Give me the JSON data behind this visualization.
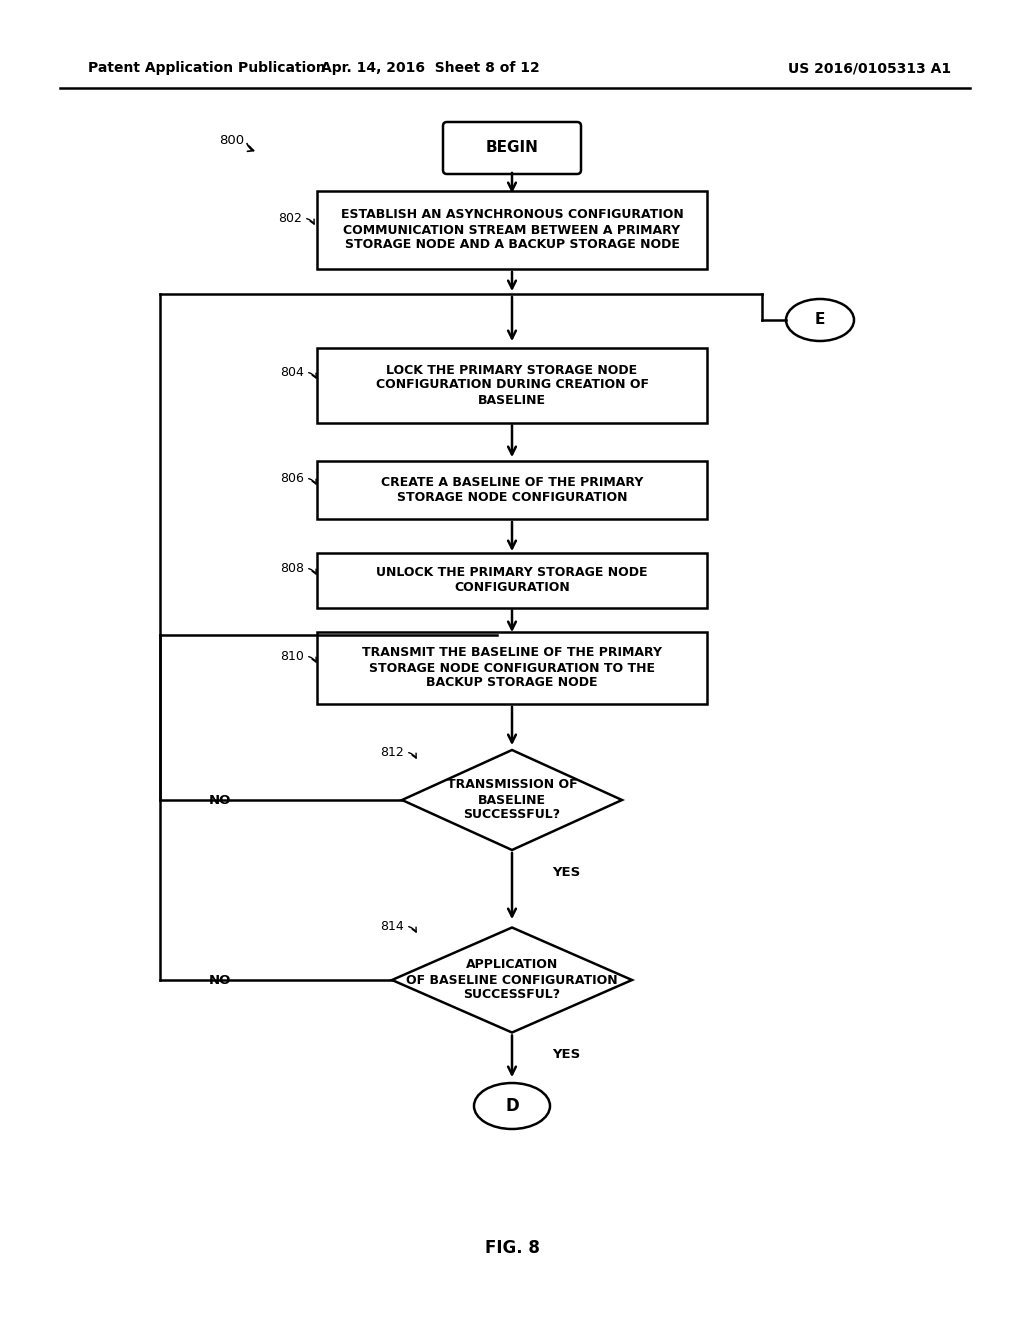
{
  "title": "FIG. 8",
  "header_left": "Patent Application Publication",
  "header_center": "Apr. 14, 2016  Sheet 8 of 12",
  "header_right": "US 2016/0105313 A1",
  "bg_color": "#ffffff",
  "line_color": "#000000",
  "text_color": "#000000",
  "begin_label": "BEGIN",
  "node_802_label": "ESTABLISH AN ASYNCHRONOUS CONFIGURATION\nCOMMUNICATION STREAM BETWEEN A PRIMARY\nSTORAGE NODE AND A BACKUP STORAGE NODE",
  "node_804_label": "LOCK THE PRIMARY STORAGE NODE\nCONFIGURATION DURING CREATION OF\nBASELINE",
  "node_806_label": "CREATE A BASELINE OF THE PRIMARY\nSTORAGE NODE CONFIGURATION",
  "node_808_label": "UNLOCK THE PRIMARY STORAGE NODE\nCONFIGURATION",
  "node_810_label": "TRANSMIT THE BASELINE OF THE PRIMARY\nSTORAGE NODE CONFIGURATION TO THE\nBACKUP STORAGE NODE",
  "node_812_label": "TRANSMISSION OF\nBASELINE\nSUCCESSFUL?",
  "node_814_label": "APPLICATION\nOF BASELINE CONFIGURATION\nSUCCESSFUL?",
  "ref_800": "800",
  "ref_802": "802",
  "ref_804": "804",
  "ref_806": "806",
  "ref_808": "808",
  "ref_810": "810",
  "ref_812": "812",
  "ref_814": "814",
  "label_D": "D",
  "label_E": "E",
  "label_NO": "NO",
  "label_YES": "YES",
  "fig_label": "FIG. 8"
}
